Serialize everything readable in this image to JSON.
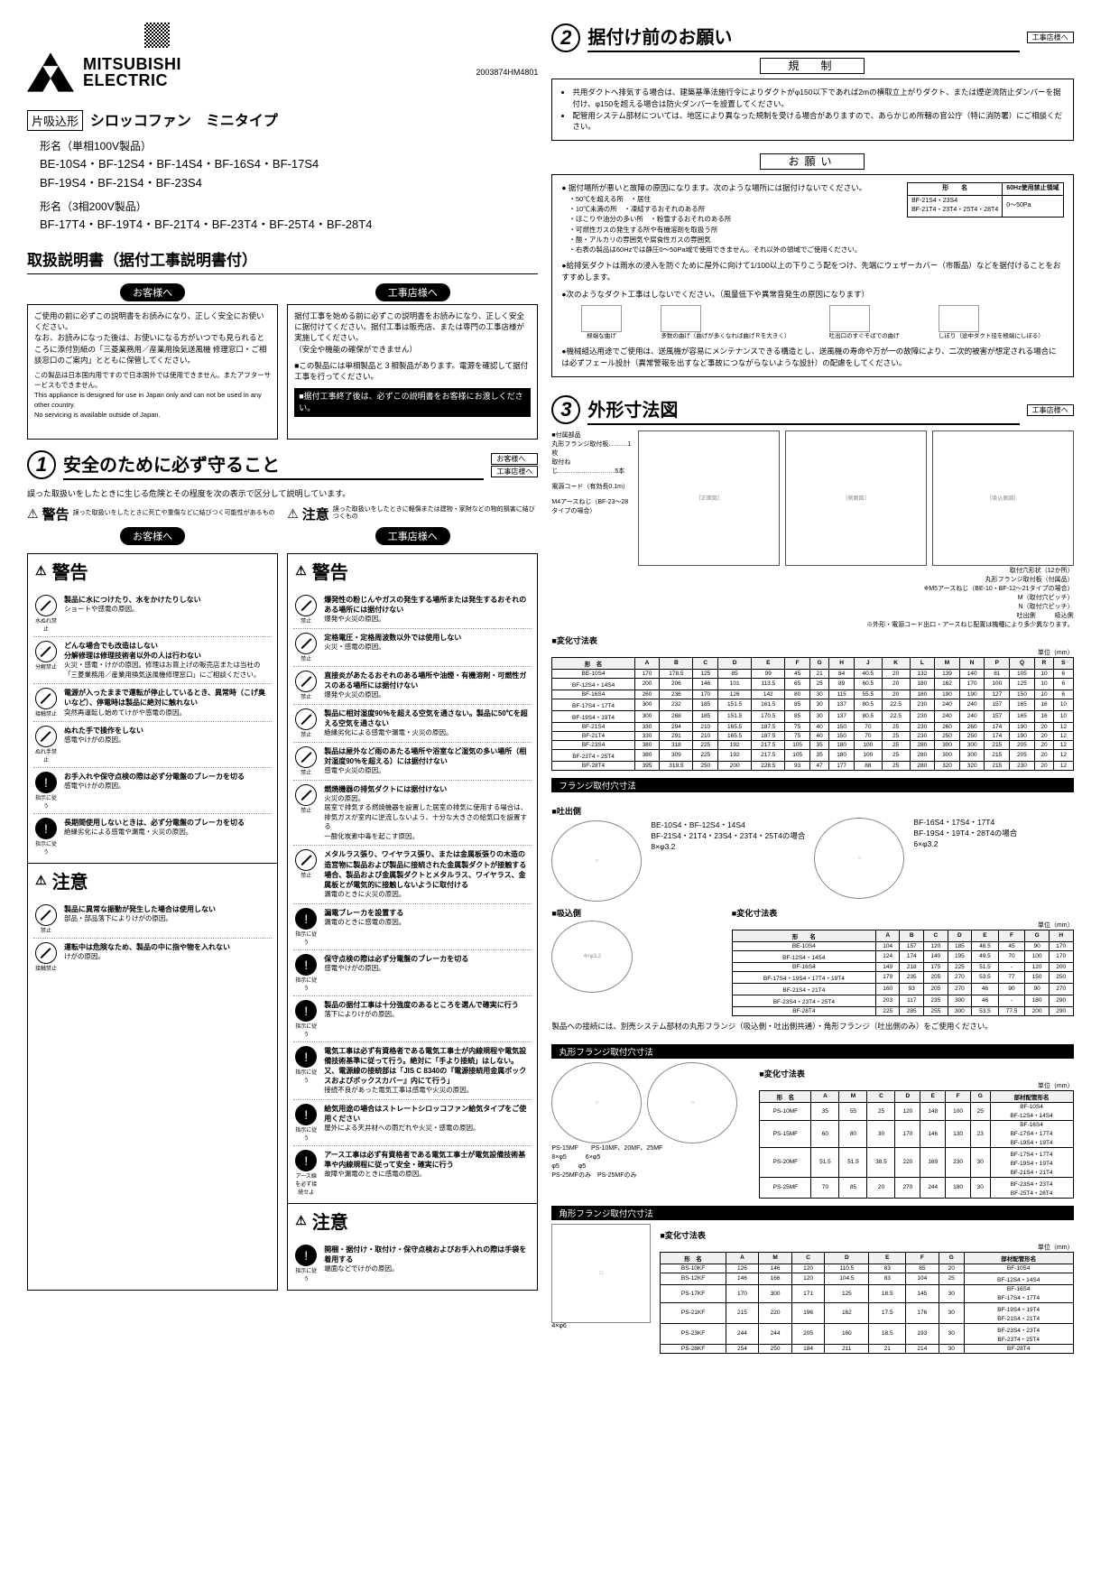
{
  "header": {
    "brand1": "MITSUBISHI",
    "brand2": "ELECTRIC",
    "docid": "2003874HM4801",
    "type_box": "片吸込形",
    "type_title": "シロッコファン　ミニタイプ",
    "models1_label": "形名（単相100V製品）",
    "models1": "BE-10S4・BF-12S4・BF-14S4・BF-16S4・BF-17S4\nBF-19S4・BF-21S4・BF-23S4",
    "models2_label": "形名（3相200V製品）",
    "models2": "BF-17T4・BF-19T4・BF-21T4・BF-23T4・BF-25T4・BF-28T4",
    "manual_title": "取扱説明書（据付工事説明書付）"
  },
  "notices": {
    "customer_pill": "お客様へ",
    "shop_pill": "工事店様へ",
    "customer_text": "ご使用の前に必ずこの説明書をお読みになり、正しく安全にお使いください。\nなお、お読みになった後は、お使いになる方がいつでも見られるところに添付別紙の「三菱業務用／産業用換気送風機 修理窓口・ご相談窓口のご案内」とともに保管してください。",
    "customer_small": "この製品は日本国内用ですので日本国外では使用できません。またアフターサービスもできません。\nThis appliance is designed for use in Japan only and can not be used in any other country.\nNo servicing is available outside of Japan.",
    "shop_text": "据付工事を始める前に必ずこの説明書をお読みになり、正しく安全に据付けてください。据付工事は販売店、または専門の工事店様が実施してください。\n（安全や機能の確保ができません）",
    "shop_bullet": "■この製品には単相製品と３相製品があります。電源を確認して据付工事を行ってください。",
    "shop_blackbar": "■据付工事終了後は、必ずこの説明書をお客様にお渡しください。"
  },
  "sect1": {
    "num": "1",
    "title": "安全のために必ず守ること",
    "tag1": "お客様へ",
    "tag2": "工事店様へ",
    "intro": "誤った取扱いをしたときに生じる危険とその程度を次の表示で区分して説明しています。",
    "w_warning": "警告",
    "w_warning_desc": "誤った取扱いをしたときに死亡や重傷などに結びつく可能性があるもの",
    "w_caution": "注意",
    "w_caution_desc": "誤った取扱いをしたときに軽傷または建物・家財などの物的損害に結びつくもの"
  },
  "warn_left": {
    "header": "警告",
    "items": [
      {
        "icon": "水ぬれ禁止",
        "bold": "製品に水につけたり、水をかけたりしない",
        "reason": "ショートや感電の原因。"
      },
      {
        "icon": "分解禁止",
        "bold": "どんな場合でも改造はしない\n分解修理は修理技術者以外の人は行わない",
        "reason": "火災・感電・けがの原因。修理はお買上げの販売店または当社の「三菱業務用／産業用換気送風機修理窓口」にご相談ください。"
      },
      {
        "icon": "接触禁止",
        "bold": "電源が入ったままで運転が停止しているとき、異常時（こげ臭いなど）、停電時は製品に絶対に触れない",
        "reason": "突然再運転し始めてけがや感電の原因。"
      },
      {
        "icon": "ぬれ手禁止",
        "bold": "ぬれた手で操作をしない",
        "reason": "感電やけがの原因。"
      },
      {
        "icon": "指示に従う",
        "bold": "お手入れや保守点検の際は必ず分電盤のブレーカを切る",
        "reason": "感電やけがの原因。",
        "mand": true
      },
      {
        "icon": "指示に従う",
        "bold": "長期間使用しないときは、必ず分電盤のブレーカを切る",
        "reason": "絶縁劣化による感電や漏電・火災の原因。",
        "mand": true
      }
    ]
  },
  "caution_left": {
    "header": "注意",
    "items": [
      {
        "icon": "禁止",
        "bold": "製品に異常な振動が発生した場合は使用しない",
        "reason": "部品・部品落下によりけがの原因。"
      },
      {
        "icon": "接触禁止",
        "bold": "運転中は危険なため、製品の中に指や物を入れない",
        "reason": "けがの原因。"
      }
    ]
  },
  "warn_right": {
    "header": "警告",
    "items": [
      {
        "icon": "禁止",
        "bold": "爆発性の粉じんやガスの発生する場所または発生するおそれのある場所には据付けない",
        "reason": "爆発や火災の原因。"
      },
      {
        "icon": "禁止",
        "bold": "定格電圧・定格周波数以外では使用しない",
        "reason": "火災・感電の原因。"
      },
      {
        "icon": "禁止",
        "bold": "直接炎があたるおそれのある場所や油煙・有機溶剤・可燃性ガスのある場所には据付けない",
        "reason": "爆発や火災の原因。"
      },
      {
        "icon": "禁止",
        "bold": "製品に相対湿度90％を超える空気を通さない。製品に50℃を超える空気を通さない",
        "reason": "絶縁劣化による感電や漏電・火災の原因。"
      },
      {
        "icon": "禁止",
        "bold": "製品は屋外など雨のあたる場所や浴室など湿気の多い場所（相対湿度90％を超える）には据付けない",
        "reason": "感電や火災の原因。"
      },
      {
        "icon": "禁止",
        "bold": "燃焼機器の排気ダクトには据付けない",
        "reason": "火災の原因。\n居室で排気する燃焼機器を設置した居室の排気に使用する場合は、排気ガスが室内に逆流しないよう、十分な大きさの給気口を設置する\n一酸化炭素中毒を起こす原因。"
      },
      {
        "icon": "禁止",
        "bold": "メタルラス張り、ワイヤラス張り、または金属板張りの木造の造営物に製品および製品に接続された金属製ダクトが接触する場合、製品および金属製ダクトとメタルラス、ワイヤラス、金属板とが電気的に接触しないように取付ける",
        "reason": "漏電のときに火災の原因。"
      },
      {
        "icon": "指示に従う",
        "bold": "漏電ブレーカを設置する",
        "reason": "漏電のときに感電の原因。",
        "mand": true
      },
      {
        "icon": "指示に従う",
        "bold": "保守点検の際は必ず分電盤のブレーカを切る",
        "reason": "感電やけがの原因。",
        "mand": true
      },
      {
        "icon": "指示に従う",
        "bold": "製品の据付工事は十分強度のあるところを選んで確実に行う",
        "reason": "落下によりけがの原因。",
        "mand": true
      },
      {
        "icon": "指示に従う",
        "bold": "電気工事は必ず有資格者である電気工事士が内線規程や電気設備技術基準に従って行う。絶対に「手より接続」はしない。又、電源線の接続部は「JIS C 8340の『電源接続用金属ボックスおよびボックスカバー』内にて行う」",
        "reason": "接続不良があった電気工事は感電や火災の原因。",
        "mand": true
      },
      {
        "icon": "指示に従う",
        "bold": "給気用途の場合はストレートシロッコファン給気タイプをご使用ください",
        "reason": "屋外による天井材への雨だれや火災・感電の原因。",
        "mand": true
      },
      {
        "icon": "アース線を必ず接続せよ",
        "bold": "アース工事は必ず有資格者である電気工事士が電気設備技術基準や内線規程に従って安全・確実に行う",
        "reason": "故障や漏電のときに感電の原因。",
        "mand": true
      }
    ]
  },
  "caution_right": {
    "header": "注意",
    "items": [
      {
        "icon": "指示に従う",
        "bold": "開梱・据付け・取付け・保守点検およびお手入れの際は手袋を着用する",
        "reason": "端面などでけがの原因。",
        "mand": true
      }
    ]
  },
  "sect2": {
    "num": "2",
    "title": "据付け前のお願い",
    "tag": "工事店様へ",
    "rule_head": "規　制",
    "rule_items": [
      "共用ダクトへ排気する場合は、建築基準法施行令によりダクトがφ150以下であれば2mの横取立上がりダクト、または煙逆流防止ダンパーを据付け、φ150を超える場合は防火ダンパーを設置してください。",
      "配管用システム部材については、地区により異なった規制を受ける場合がありますので、あらかじめ所轄の官公庁（特に消防署）にご相談ください。"
    ],
    "wish_head": "お願い",
    "wish_intro": "● 据付場所が悪いと故障の原因になります。次のような場所には据付けないでください。",
    "wish_list": "・50℃を超える所　・居住\n・10℃未満の所　・凍結するおそれのある所\n・ほこりや油分の多い所　・粉雪するおそれのある所\n・可燃性ガスの発生する所や有機溶剤を取扱う所\n・酸・アルカリの雰囲気や腐食性ガスの雰囲気\n・右表の製品は60Hzでは静圧0～50Pa域で使用できません。それ以外の領域でご使用ください。",
    "mini_table": {
      "head": [
        "形　　名",
        "60Hz使用禁止領域"
      ],
      "row": [
        "BF-21S4・23S4\nBF-21T4・23T4・25T4・28T4",
        "0～50Pa"
      ]
    },
    "wish2": "●給排気ダクトは雨水の浸入を防ぐために屋外に向けて1/100以上の下りこう配をつけ、先端にウェザーカバー（市販品）などを据付けることをおすすめします。",
    "wish3": "●次のようなダクト工事はしないでください。（風量低下や異常音発生の原因になります）",
    "diag_labels": [
      "極端な曲げ",
      "多数の曲げ（曲げが多くなれば曲げＲを大きく）",
      "吐出口のすぐそばでの曲げ",
      "しぼり（途中ダクト径を極端にしぼる）"
    ],
    "wish4": "●機械組込用途でご使用は、送風機が容易にメンテナンスできる構造とし、送風機の寿命や万が一の故障により、二次的被害が想定される場合には必ずフェール設計（異常警報を出すなど事故につながらないような設計）の配慮をしてください。"
  },
  "sect3": {
    "num": "3",
    "title": "外形寸法図",
    "tag": "工事店様へ",
    "sub1": "■変化寸法表",
    "unit": "単位（mm）",
    "dim_note": "■付属部品\n丸形フランジ取付板………1枚\n取付ねじ………………………5本\n\n電源コード（有効長0.1m）\n\nM4アースねじ（BF-23～28タイプの場合）",
    "side_note": "取付穴形状（12か所）\n丸形フランジ取付板（付属品）\n※M5アースねじ（BE-10・BF-12～21タイプの場合）\nM（取付穴ピッチ）\nN（取付穴ピッチ）\n吐出側　　　吸込側\n※外形・電源コード出口・アースねじ配置は機種により多少異なります。",
    "dim_table": {
      "head": [
        "形　名",
        "A",
        "B",
        "C",
        "D",
        "E",
        "F",
        "G",
        "H",
        "J",
        "K",
        "L",
        "M",
        "N",
        "P",
        "Q",
        "R",
        "S"
      ],
      "rows": [
        [
          "BE-10S4",
          "170",
          "178.5",
          "125",
          "85",
          "99",
          "45",
          "21",
          "84",
          "40.5",
          "20",
          "132",
          "139",
          "140",
          "81",
          "105",
          "10",
          "6"
        ],
        [
          "BF-12S4・14S4",
          "200",
          "206",
          "146",
          "101",
          "113.5",
          "65",
          "25",
          "89",
          "60.5",
          "20",
          "180",
          "162",
          "170",
          "100",
          "125",
          "10",
          "6"
        ],
        [
          "BF-16S4",
          "260",
          "236",
          "170",
          "126",
          "142",
          "80",
          "30",
          "115",
          "55.5",
          "20",
          "180",
          "190",
          "190",
          "127",
          "150",
          "10",
          "6"
        ],
        [
          "BF-17S4・17T4",
          "300",
          "232",
          "185",
          "151.5",
          "161.5",
          "85",
          "30",
          "137",
          "80.5",
          "22.5",
          "230",
          "240",
          "240",
          "157",
          "165",
          "16",
          "10"
        ],
        [
          "BF-19S4・19T4",
          "300",
          "268",
          "185",
          "151.5",
          "170.5",
          "85",
          "30",
          "137",
          "80.5",
          "22.5",
          "230",
          "240",
          "240",
          "157",
          "165",
          "16",
          "10"
        ],
        [
          "BF-21S4",
          "330",
          "294",
          "210",
          "165.5",
          "187.5",
          "75",
          "40",
          "150",
          "70",
          "25",
          "230",
          "260",
          "260",
          "174",
          "190",
          "20",
          "12"
        ],
        [
          "BF-21T4",
          "330",
          "291",
          "210",
          "165.5",
          "187.5",
          "75",
          "40",
          "150",
          "70",
          "25",
          "230",
          "250",
          "250",
          "174",
          "190",
          "20",
          "12"
        ],
        [
          "BF-23S4",
          "380",
          "318",
          "225",
          "192",
          "217.5",
          "105",
          "35",
          "180",
          "100",
          "25",
          "280",
          "300",
          "300",
          "215",
          "205",
          "20",
          "12"
        ],
        [
          "BF-23T4・25T4",
          "380",
          "309",
          "225",
          "192",
          "217.5",
          "105",
          "35",
          "180",
          "100",
          "25",
          "280",
          "300",
          "300",
          "215",
          "205",
          "20",
          "12"
        ],
        [
          "BF-28T4",
          "395",
          "319.5",
          "250",
          "200",
          "228.5",
          "93",
          "47",
          "177",
          "88",
          "25",
          "280",
          "320",
          "320",
          "215",
          "230",
          "20",
          "12"
        ]
      ]
    },
    "flange_head": "フランジ取付穴寸法",
    "flange_left_label": "■吐出側",
    "flange_left_text": "BE-10S4・BF-12S4・14S4\nBF-21S4・21T4・23S4・23T4・25T4の場合\n8×φ3.2",
    "flange_right_text": "BF-16S4・17S4・17T4\nBF-19S4・19T4・28T4の場合\n6×φ3.2",
    "flange_in_label": "■吸込側",
    "flange_in_note": "4×φ3.2",
    "mini_dim_head": "■変化寸法表",
    "mini_dim": {
      "head": [
        "形　　名",
        "A",
        "B",
        "C",
        "D",
        "E",
        "F",
        "G",
        "H"
      ],
      "rows": [
        [
          "BE-10S4",
          "104",
          "157",
          "120",
          "185",
          "48.5",
          "45",
          "90",
          "170"
        ],
        [
          "BF-12S4・14S4",
          "124",
          "174",
          "140",
          "195",
          "49.5",
          "70",
          "100",
          "170"
        ],
        [
          "BF-16S4",
          "149",
          "218",
          "175",
          "225",
          "51.5",
          "-",
          "120",
          "200"
        ],
        [
          "BF-17S4・19S4・17T4・19T4",
          "179",
          "235",
          "205",
          "270",
          "53.5",
          "77",
          "150",
          "250"
        ],
        [
          "BF-21S4・21T4",
          "160",
          "93",
          "205",
          "270",
          "46",
          "90",
          "90",
          "270"
        ],
        [
          "BF-23S4・23T4・25T4",
          "203",
          "117",
          "235",
          "300",
          "46",
          "-",
          "180",
          "290"
        ],
        [
          "BF-28T4",
          "225",
          "285",
          "255",
          "300",
          "53.5",
          "77.5",
          "200",
          "290"
        ]
      ]
    },
    "note": "製品への接続には、別売システム部材の丸形フランジ（吸込側・吐出側共通）・角形フランジ（吐出側のみ）をご使用ください。",
    "round_head": "丸形フランジ取付穴寸法",
    "round_labels": "PS-15MF　　PS-10MF、20MF、25MF\n8×φ5　　　6×φ5\nφ5　　　φ5\nPS-25MFのみ　PS-25MFのみ",
    "round_dim": {
      "head": [
        "形　名",
        "A",
        "M",
        "C",
        "D",
        "E",
        "F",
        "G",
        "部材配管形名"
      ],
      "rows": [
        [
          "PS-10MF",
          "35",
          "55",
          "25",
          "120",
          "148",
          "100",
          "25",
          "BF-10S4\nBF-12S4・14S4"
        ],
        [
          "PS-15MF",
          "60",
          "80",
          "30",
          "170",
          "146",
          "130",
          "23",
          "BF-16S4\nBF-17S4・17T4\nBF-19S4・19T4"
        ],
        [
          "PS-20MF",
          "51.5",
          "51.5",
          "38.5",
          "220",
          "169",
          "230",
          "30",
          "BF-17S4・17T4\nBF-19S4・19T4\nBF-21S4・21T4"
        ],
        [
          "PS-25MF",
          "70",
          "85",
          "20",
          "270",
          "244",
          "180",
          "30",
          "BF-23S4・23T4\nBF-25T4・28T4"
        ]
      ]
    },
    "angle_head": "角形フランジ取付穴寸法",
    "angle_note": "4×φ6",
    "angle_dim": {
      "head": [
        "形　名",
        "A",
        "M",
        "C",
        "D",
        "E",
        "F",
        "G",
        "部材配管形名"
      ],
      "rows": [
        [
          "BS-10KF",
          "126",
          "146",
          "120",
          "110.5",
          "83",
          "85",
          "20",
          "BF-10S4"
        ],
        [
          "BS-12KF",
          "146",
          "166",
          "120",
          "104.5",
          "83",
          "104",
          "25",
          "BF-12S4・14S4"
        ],
        [
          "PS-17KF",
          "170",
          "300",
          "171",
          "125",
          "18.5",
          "145",
          "30",
          "BF-16S4\nBF-17S4・17T4"
        ],
        [
          "PS-21KF",
          "215",
          "220",
          "196",
          "162",
          "17.5",
          "176",
          "30",
          "BF-19S4・19T4\nBF-21S4・21T4"
        ],
        [
          "PS-23KF",
          "244",
          "244",
          "205",
          "160",
          "18.5",
          "193",
          "30",
          "BF-23S4・23T4\nBF-23T4・25T4"
        ],
        [
          "PS-28KF",
          "254",
          "250",
          "184",
          "211",
          "21",
          "214",
          "30",
          "BF-28T4"
        ]
      ]
    }
  }
}
